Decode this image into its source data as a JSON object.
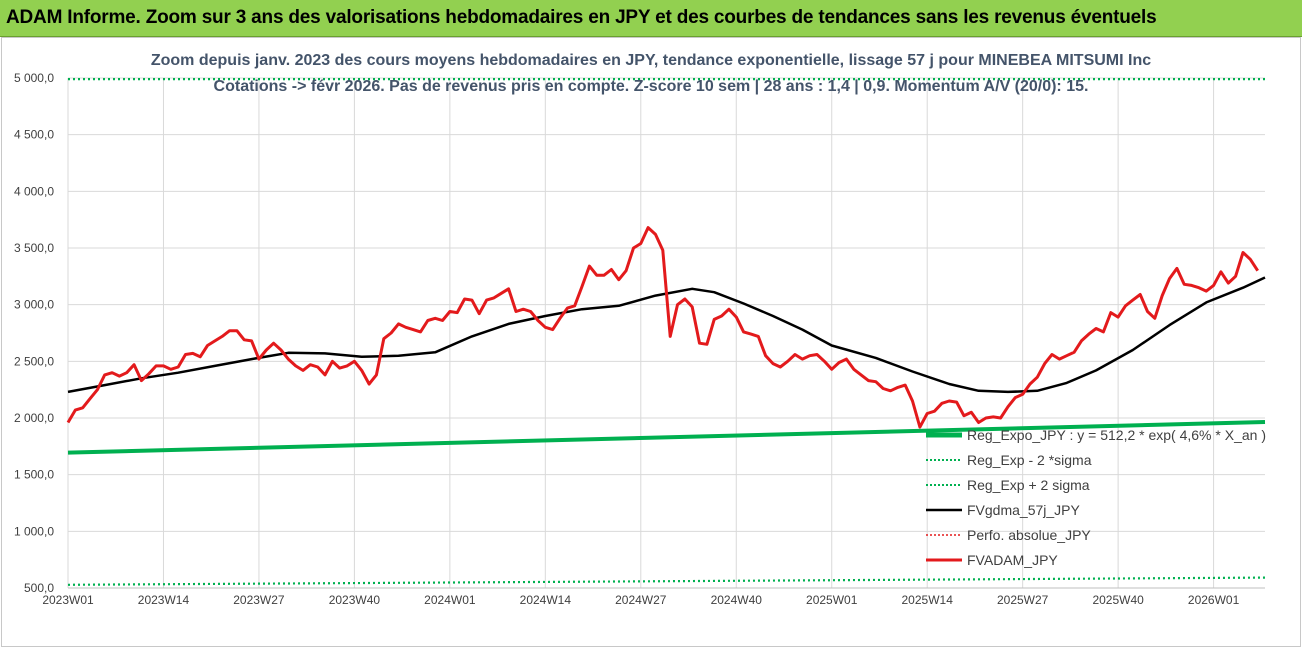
{
  "header": {
    "banner": "ADAM Informe. Zoom sur 3 ans des valorisations hebdomadaires en JPY et des courbes de tendances sans les revenus éventuels"
  },
  "colors": {
    "banner_bg": "#92d050",
    "title": "#44546a",
    "price": "#e31a1c",
    "mavg": "#000000",
    "reg": "#00b050",
    "perf": "#e31a1c",
    "grid": "#d9d9d9"
  },
  "chart_data": {
    "type": "line",
    "title_line1": "Zoom depuis janv. 2023 des cours moyens hebdomadaires en JPY, tendance exponentielle, lissage 57 j pour MINEBEA MITSUMI Inc",
    "title_line2": "Cotations -> févr 2026. Pas de revenus pris en compte. Z-score 10 sem | 28 ans : 1,4 | 0,9. Momentum A/V (20/0): 15.",
    "ylim": [
      500,
      5000
    ],
    "yticks": [
      500,
      1000,
      1500,
      2000,
      2500,
      3000,
      3500,
      4000,
      4500,
      5000
    ],
    "ytick_labels": [
      "500,0",
      "1 000,0",
      "1 500,0",
      "2 000,0",
      "2 500,0",
      "3 000,0",
      "3 500,0",
      "4 000,0",
      "4 500,0",
      "5 000,0"
    ],
    "xtick_labels": [
      "2023W01",
      "2023W14",
      "2023W27",
      "2023W40",
      "2024W01",
      "2024W14",
      "2024W27",
      "2024W40",
      "2025W01",
      "2025W14",
      "2025W27",
      "2025W40",
      "2026W01"
    ],
    "xtick_index": [
      0,
      13,
      26,
      39,
      52,
      65,
      78,
      91,
      104,
      117,
      130,
      143,
      156
    ],
    "n_weeks": 164,
    "legend": [
      {
        "label": "Reg_Expo_JPY : y = 512,2 * exp( 4,6% *  X_an )",
        "style": "thick-green"
      },
      {
        "label": "Reg_Exp - 2 *sigma",
        "style": "dotted-green"
      },
      {
        "label": "Reg_Exp + 2 sigma",
        "style": "dotted-green"
      },
      {
        "label": "FVgdma_57j_JPY",
        "style": "black"
      },
      {
        "label": "Perfo. absolue_JPY",
        "style": "dotted-red"
      },
      {
        "label": "FVADAM_JPY",
        "style": "thick-red"
      }
    ],
    "series": [
      {
        "name": "Reg_Expo_JPY",
        "points": [
          [
            0,
            1695
          ],
          [
            163,
            1965
          ]
        ]
      },
      {
        "name": "Reg_Exp - 2 *sigma",
        "points": [
          [
            0,
            528
          ],
          [
            163,
            592
          ]
        ]
      },
      {
        "name": "Reg_Exp + 2 sigma",
        "points": [
          [
            0,
            4990
          ],
          [
            163,
            4990
          ]
        ]
      },
      {
        "name": "FVgdma_57j_JPY",
        "points": [
          [
            0,
            2230
          ],
          [
            5,
            2290
          ],
          [
            10,
            2350
          ],
          [
            15,
            2400
          ],
          [
            20,
            2460
          ],
          [
            25,
            2520
          ],
          [
            30,
            2575
          ],
          [
            35,
            2570
          ],
          [
            40,
            2540
          ],
          [
            45,
            2550
          ],
          [
            50,
            2580
          ],
          [
            55,
            2720
          ],
          [
            60,
            2830
          ],
          [
            65,
            2900
          ],
          [
            70,
            2960
          ],
          [
            75,
            2990
          ],
          [
            80,
            3080
          ],
          [
            85,
            3140
          ],
          [
            88,
            3110
          ],
          [
            92,
            3010
          ],
          [
            96,
            2900
          ],
          [
            100,
            2780
          ],
          [
            104,
            2640
          ],
          [
            110,
            2530
          ],
          [
            115,
            2410
          ],
          [
            120,
            2300
          ],
          [
            124,
            2240
          ],
          [
            128,
            2230
          ],
          [
            132,
            2240
          ],
          [
            136,
            2310
          ],
          [
            140,
            2420
          ],
          [
            145,
            2600
          ],
          [
            150,
            2820
          ],
          [
            155,
            3020
          ],
          [
            160,
            3150
          ],
          [
            163,
            3240
          ]
        ]
      },
      {
        "name": "FVADAM_JPY",
        "points": [
          [
            0,
            1960
          ],
          [
            1,
            2070
          ],
          [
            2,
            2090
          ],
          [
            3,
            2170
          ],
          [
            4,
            2250
          ],
          [
            5,
            2380
          ],
          [
            6,
            2400
          ],
          [
            7,
            2370
          ],
          [
            8,
            2400
          ],
          [
            9,
            2470
          ],
          [
            10,
            2330
          ],
          [
            11,
            2390
          ],
          [
            12,
            2460
          ],
          [
            13,
            2460
          ],
          [
            14,
            2430
          ],
          [
            15,
            2450
          ],
          [
            16,
            2560
          ],
          [
            17,
            2570
          ],
          [
            18,
            2540
          ],
          [
            19,
            2640
          ],
          [
            20,
            2680
          ],
          [
            21,
            2720
          ],
          [
            22,
            2770
          ],
          [
            23,
            2770
          ],
          [
            24,
            2690
          ],
          [
            25,
            2680
          ],
          [
            26,
            2520
          ],
          [
            27,
            2600
          ],
          [
            28,
            2660
          ],
          [
            29,
            2600
          ],
          [
            30,
            2520
          ],
          [
            31,
            2460
          ],
          [
            32,
            2420
          ],
          [
            33,
            2470
          ],
          [
            34,
            2450
          ],
          [
            35,
            2380
          ],
          [
            36,
            2500
          ],
          [
            37,
            2440
          ],
          [
            38,
            2460
          ],
          [
            39,
            2500
          ],
          [
            40,
            2420
          ],
          [
            41,
            2300
          ],
          [
            42,
            2380
          ],
          [
            43,
            2700
          ],
          [
            44,
            2750
          ],
          [
            45,
            2830
          ],
          [
            46,
            2800
          ],
          [
            47,
            2780
          ],
          [
            48,
            2760
          ],
          [
            49,
            2860
          ],
          [
            50,
            2880
          ],
          [
            51,
            2860
          ],
          [
            52,
            2940
          ],
          [
            53,
            2930
          ],
          [
            54,
            3050
          ],
          [
            55,
            3040
          ],
          [
            56,
            2920
          ],
          [
            57,
            3040
          ],
          [
            58,
            3060
          ],
          [
            59,
            3100
          ],
          [
            60,
            3140
          ],
          [
            61,
            2940
          ],
          [
            62,
            2960
          ],
          [
            63,
            2940
          ],
          [
            64,
            2860
          ],
          [
            65,
            2800
          ],
          [
            66,
            2780
          ],
          [
            67,
            2880
          ],
          [
            68,
            2970
          ],
          [
            69,
            2990
          ],
          [
            70,
            3160
          ],
          [
            71,
            3340
          ],
          [
            72,
            3260
          ],
          [
            73,
            3260
          ],
          [
            74,
            3310
          ],
          [
            75,
            3220
          ],
          [
            76,
            3300
          ],
          [
            77,
            3500
          ],
          [
            78,
            3540
          ],
          [
            79,
            3680
          ],
          [
            80,
            3620
          ],
          [
            81,
            3480
          ],
          [
            82,
            2720
          ],
          [
            83,
            3000
          ],
          [
            84,
            3050
          ],
          [
            85,
            2980
          ],
          [
            86,
            2660
          ],
          [
            87,
            2650
          ],
          [
            88,
            2870
          ],
          [
            89,
            2900
          ],
          [
            90,
            2960
          ],
          [
            91,
            2890
          ],
          [
            92,
            2760
          ],
          [
            93,
            2740
          ],
          [
            94,
            2720
          ],
          [
            95,
            2550
          ],
          [
            96,
            2480
          ],
          [
            97,
            2450
          ],
          [
            98,
            2500
          ],
          [
            99,
            2560
          ],
          [
            100,
            2520
          ],
          [
            101,
            2550
          ],
          [
            102,
            2560
          ],
          [
            103,
            2500
          ],
          [
            104,
            2430
          ],
          [
            105,
            2490
          ],
          [
            106,
            2520
          ],
          [
            107,
            2430
          ],
          [
            108,
            2380
          ],
          [
            109,
            2330
          ],
          [
            110,
            2320
          ],
          [
            111,
            2260
          ],
          [
            112,
            2240
          ],
          [
            113,
            2270
          ],
          [
            114,
            2290
          ],
          [
            115,
            2150
          ],
          [
            116,
            1920
          ],
          [
            117,
            2040
          ],
          [
            118,
            2060
          ],
          [
            119,
            2130
          ],
          [
            120,
            2150
          ],
          [
            121,
            2140
          ],
          [
            122,
            2020
          ],
          [
            123,
            2050
          ],
          [
            124,
            1960
          ],
          [
            125,
            2000
          ],
          [
            126,
            2010
          ],
          [
            127,
            2000
          ],
          [
            128,
            2100
          ],
          [
            129,
            2180
          ],
          [
            130,
            2210
          ],
          [
            131,
            2300
          ],
          [
            132,
            2360
          ],
          [
            133,
            2480
          ],
          [
            134,
            2560
          ],
          [
            135,
            2520
          ],
          [
            136,
            2550
          ],
          [
            137,
            2580
          ],
          [
            138,
            2680
          ],
          [
            139,
            2740
          ],
          [
            140,
            2790
          ],
          [
            141,
            2760
          ],
          [
            142,
            2930
          ],
          [
            143,
            2890
          ],
          [
            144,
            2990
          ],
          [
            145,
            3040
          ],
          [
            146,
            3090
          ],
          [
            147,
            2940
          ],
          [
            148,
            2880
          ],
          [
            149,
            3080
          ],
          [
            150,
            3230
          ],
          [
            151,
            3320
          ],
          [
            152,
            3180
          ],
          [
            153,
            3170
          ],
          [
            154,
            3150
          ],
          [
            155,
            3120
          ],
          [
            156,
            3170
          ],
          [
            157,
            3290
          ],
          [
            158,
            3190
          ],
          [
            159,
            3250
          ],
          [
            160,
            3460
          ],
          [
            161,
            3400
          ],
          [
            162,
            3300
          ]
        ]
      }
    ]
  }
}
